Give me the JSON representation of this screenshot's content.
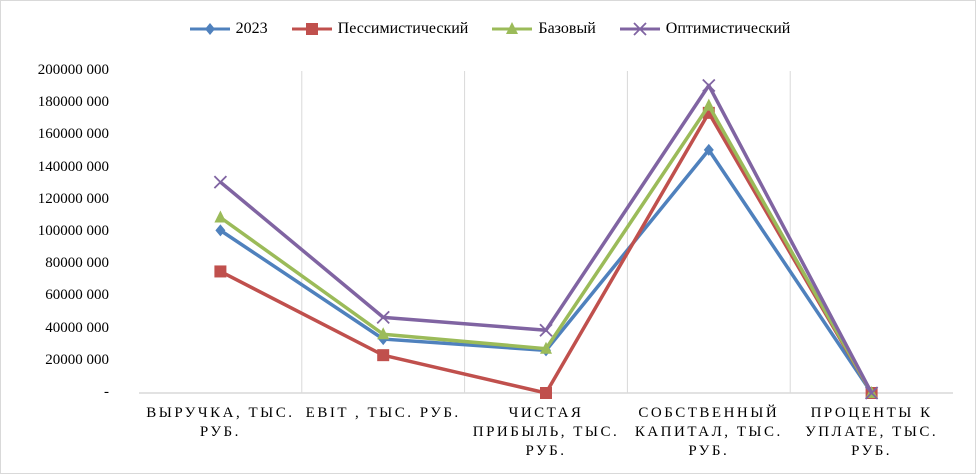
{
  "chart_data": {
    "type": "line",
    "categories": [
      "ВЫРУЧКА, ТЫС. РУБ.",
      "EBIT , ТЫС. РУБ.",
      "ЧИСТАЯ ПРИБЫЛЬ, ТЫС. РУБ.",
      "СОБСТВЕННЫЙ КАПИТАЛ, ТЫС. РУБ.",
      "ПРОЦЕНТЫ К УПЛАТЕ, ТЫС. РУБ."
    ],
    "series": [
      {
        "name": "2023",
        "color": "#4f81bd",
        "marker": "diamond",
        "values": [
          101000,
          33500,
          26500,
          151000,
          0
        ]
      },
      {
        "name": "Пессимистический",
        "color": "#c0504d",
        "marker": "square",
        "values": [
          75500,
          23500,
          0,
          174000,
          0
        ]
      },
      {
        "name": "Базовый",
        "color": "#9bbb59",
        "marker": "triangle",
        "values": [
          109000,
          36500,
          27500,
          178500,
          0
        ]
      },
      {
        "name": "Оптимистический",
        "color": "#8064a2",
        "marker": "x",
        "values": [
          131000,
          47000,
          39000,
          191000,
          0
        ]
      }
    ],
    "ylim": [
      0,
      200000
    ],
    "yticks": [
      0,
      20000,
      40000,
      60000,
      80000,
      100000,
      120000,
      140000,
      160000,
      180000,
      200000
    ],
    "ytick_labels": [
      "-",
      "20000 000",
      "40000 000",
      "60000 000",
      "80000 000",
      "100000 000",
      "120000 000",
      "140000 000",
      "160000 000",
      "180000 000",
      "200000 000"
    ],
    "grid": "vertical",
    "legend": "top"
  }
}
